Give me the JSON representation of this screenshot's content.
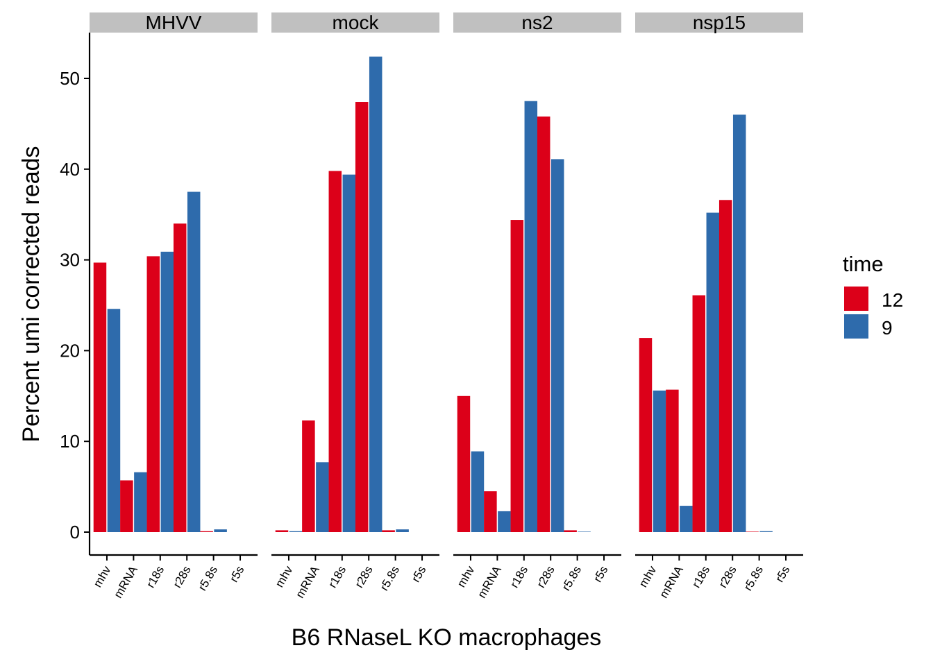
{
  "chart_data": {
    "type": "bar",
    "xlabel": "B6 RNaseL KO macrophages",
    "ylabel": "Percent umi corrected reads",
    "ylim": [
      -2.5,
      55
    ],
    "yticks": [
      0,
      10,
      20,
      30,
      40,
      50
    ],
    "categories": [
      "mhv",
      "mRNA",
      "r18s",
      "r28s",
      "r5.8s",
      "r5s"
    ],
    "legend": {
      "title": "time",
      "position": "right",
      "entries": [
        {
          "label": "12",
          "color": "#DC0019"
        },
        {
          "label": "9",
          "color": "#2E6BAC"
        }
      ]
    },
    "facets": [
      {
        "name": "MHVV",
        "series": [
          {
            "name": "12",
            "values": [
              29.7,
              5.7,
              30.4,
              34.0,
              0.1,
              0
            ]
          },
          {
            "name": "9",
            "values": [
              24.6,
              6.6,
              30.9,
              37.5,
              0.3,
              0
            ]
          }
        ]
      },
      {
        "name": "mock",
        "series": [
          {
            "name": "12",
            "values": [
              0.2,
              12.3,
              39.8,
              47.4,
              0.2,
              0
            ]
          },
          {
            "name": "9",
            "values": [
              0.1,
              7.7,
              39.4,
              52.4,
              0.3,
              0
            ]
          }
        ]
      },
      {
        "name": "ns2",
        "series": [
          {
            "name": "12",
            "values": [
              15.0,
              4.5,
              34.4,
              45.8,
              0.2,
              0
            ]
          },
          {
            "name": "9",
            "values": [
              8.9,
              2.3,
              47.5,
              41.1,
              0.05,
              0
            ]
          }
        ]
      },
      {
        "name": "nsp15",
        "series": [
          {
            "name": "12",
            "values": [
              21.4,
              15.7,
              26.1,
              36.6,
              0.05,
              0
            ]
          },
          {
            "name": "9",
            "values": [
              15.6,
              2.9,
              35.2,
              46.0,
              0.1,
              0
            ]
          }
        ]
      }
    ]
  }
}
